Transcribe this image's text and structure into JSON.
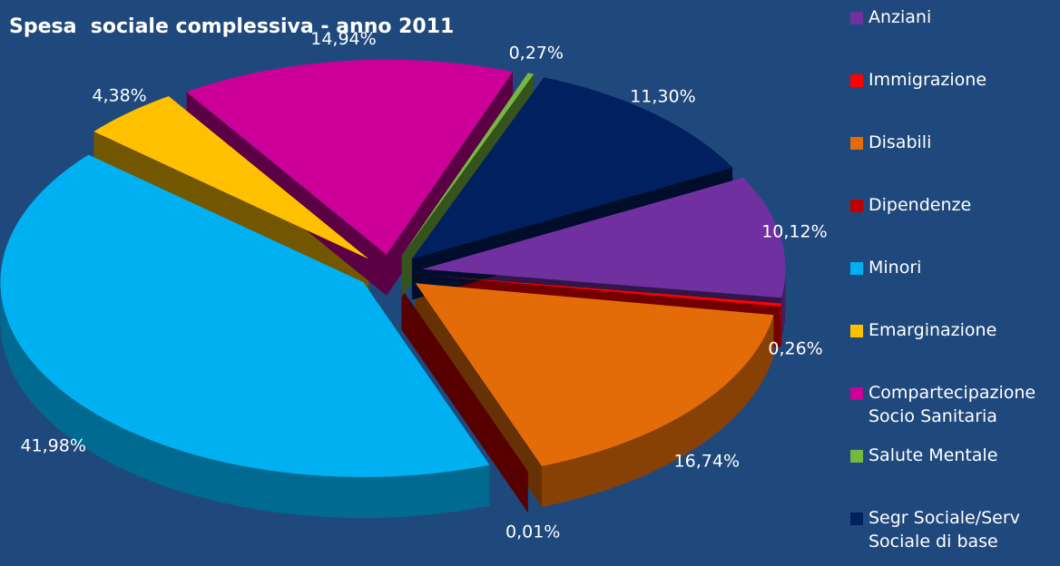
{
  "chart_data": {
    "type": "pie3d",
    "title": "Spesa  sociale complessiva - anno 2011",
    "categories": [
      "Anziani",
      "Immigrazione",
      "Disabili",
      "Dipendenze",
      "Minori",
      "Emarginazione",
      "Compartecipazione Socio Sanitaria",
      "Salute Mentale",
      "Segr Sociale/Serv Sociale di base"
    ],
    "values": [
      10.12,
      0.26,
      16.74,
      0.01,
      41.98,
      4.38,
      14.94,
      0.27,
      11.3
    ],
    "value_labels": [
      "10,12%",
      "0,26%",
      "16,74%",
      "0,01%",
      "41,98%",
      "4,38%",
      "14,94%",
      "0,27%",
      "11,30%"
    ],
    "colors": [
      "#7030a0",
      "#ff0000",
      "#e36c09",
      "#c00000",
      "#00b0f0",
      "#ffc000",
      "#cc0099",
      "#77b843",
      "#002060"
    ],
    "legend": "right"
  }
}
